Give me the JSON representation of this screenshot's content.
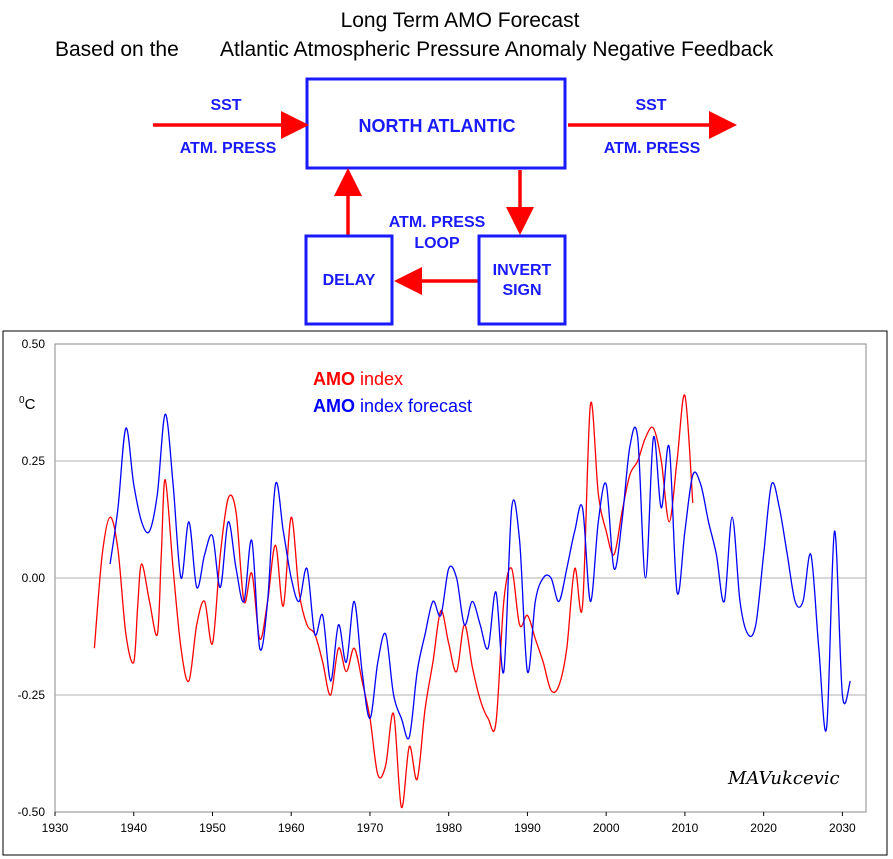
{
  "header": {
    "title_line1": "Long Term AMO Forecast",
    "title_line2_a": "Based on the",
    "title_line2_b": "Atlantic Atmospheric Pressure Anomaly Negative Feedback"
  },
  "diagram": {
    "in_label_top": "SST",
    "in_label_bottom": "ATM. PRESS",
    "main_block": "NORTH  ATLANTIC",
    "out_label_top": "SST",
    "out_label_bottom": "ATM. PRESS",
    "loop_label_1": "ATM. PRESS",
    "loop_label_2": "LOOP",
    "delay_block": "DELAY",
    "invert_block_1": "INVERT",
    "invert_block_2": "SIGN",
    "colors": {
      "text": "#1a1aff",
      "box": "#1a1aff",
      "arrow": "#ff0000"
    }
  },
  "signature": "MAVukcevic",
  "chart_data": {
    "type": "line",
    "unit_label": "°C",
    "xlim": [
      1930,
      2033
    ],
    "ylim": [
      -0.5,
      0.5
    ],
    "x_ticks": [
      "1930",
      "1940",
      "1950",
      "1960",
      "1970",
      "1980",
      "1990",
      "2000",
      "2010",
      "2020",
      "2030"
    ],
    "y_ticks": [
      "0.50",
      "0.25",
      "0.00",
      "-0.25",
      "-0.50"
    ],
    "y_tick_values": [
      0.5,
      0.25,
      0,
      -0.25,
      -0.5
    ],
    "grid": "horizontal",
    "legend": [
      {
        "bold": "AMO",
        "rest": " index",
        "color": "#ff0000"
      },
      {
        "bold": "AMO",
        "rest": " index forecast",
        "color": "#0000ff"
      }
    ],
    "series": [
      {
        "name": "AMO index",
        "color": "#ff0000",
        "x": [
          1935,
          1936,
          1937,
          1938,
          1939,
          1940,
          1940.5,
          1941,
          1942,
          1943,
          1943.5,
          1944,
          1945,
          1946,
          1947,
          1948,
          1949,
          1950,
          1951,
          1952,
          1953,
          1954,
          1955,
          1956,
          1957,
          1958,
          1959,
          1960,
          1961,
          1962,
          1963,
          1964,
          1965,
          1966,
          1967,
          1968,
          1969,
          1970,
          1971,
          1972,
          1973,
          1974,
          1975,
          1976,
          1977,
          1978,
          1979,
          1980,
          1981,
          1982,
          1983,
          1984,
          1985,
          1986,
          1987,
          1988,
          1989,
          1990,
          1991,
          1992,
          1993,
          1994,
          1995,
          1996,
          1997,
          1998,
          1999,
          2000,
          2001,
          2002,
          2003,
          2004,
          2005,
          2006,
          2007,
          2008,
          2009,
          2010,
          2011
        ],
        "y": [
          -0.15,
          0.05,
          0.13,
          0.06,
          -0.12,
          -0.18,
          -0.06,
          0.03,
          -0.05,
          -0.12,
          0.05,
          0.21,
          0.02,
          -0.15,
          -0.22,
          -0.1,
          -0.05,
          -0.14,
          0.05,
          0.17,
          0.14,
          -0.05,
          0.01,
          -0.13,
          -0.05,
          0.07,
          -0.06,
          0.13,
          -0.03,
          -0.1,
          -0.12,
          -0.18,
          -0.25,
          -0.15,
          -0.2,
          -0.15,
          -0.22,
          -0.3,
          -0.42,
          -0.4,
          -0.29,
          -0.49,
          -0.36,
          -0.43,
          -0.28,
          -0.18,
          -0.07,
          -0.14,
          -0.2,
          -0.1,
          -0.19,
          -0.26,
          -0.3,
          -0.31,
          -0.05,
          0.02,
          -0.1,
          -0.08,
          -0.13,
          -0.18,
          -0.24,
          -0.23,
          -0.15,
          0.02,
          -0.06,
          0.37,
          0.18,
          0.1,
          0.05,
          0.14,
          0.22,
          0.25,
          0.3,
          0.32,
          0.25,
          0.12,
          0.25,
          0.39,
          0.16
        ]
      },
      {
        "name": "AMO index forecast",
        "color": "#0000ff",
        "x": [
          1937,
          1938,
          1939,
          1940,
          1941,
          1942,
          1943,
          1944,
          1945,
          1946,
          1947,
          1948,
          1949,
          1950,
          1951,
          1952,
          1953,
          1954,
          1955,
          1956,
          1957,
          1958,
          1959,
          1960,
          1961,
          1962,
          1963,
          1964,
          1965,
          1966,
          1967,
          1968,
          1969,
          1970,
          1971,
          1972,
          1973,
          1974,
          1975,
          1976,
          1977,
          1978,
          1979,
          1980,
          1981,
          1982,
          1983,
          1984,
          1985,
          1986,
          1987,
          1988,
          1989,
          1990,
          1991,
          1992,
          1993,
          1994,
          1995,
          1996,
          1997,
          1998,
          1999,
          2000,
          2001,
          2002,
          2003,
          2004,
          2005,
          2006,
          2007,
          2008,
          2009,
          2010,
          2011,
          2012,
          2013,
          2014,
          2015,
          2016,
          2017,
          2018,
          2019,
          2020,
          2021,
          2022,
          2023,
          2024,
          2025,
          2026,
          2027,
          2028,
          2029,
          2030,
          2031
        ],
        "y": [
          0.03,
          0.15,
          0.32,
          0.2,
          0.12,
          0.1,
          0.18,
          0.35,
          0.2,
          0.0,
          0.12,
          -0.02,
          0.05,
          0.09,
          -0.02,
          0.12,
          0.02,
          -0.05,
          0.08,
          -0.15,
          -0.05,
          0.2,
          0.1,
          0.0,
          -0.05,
          0.02,
          -0.12,
          -0.08,
          -0.22,
          -0.1,
          -0.18,
          -0.05,
          -0.2,
          -0.3,
          -0.18,
          -0.12,
          -0.25,
          -0.3,
          -0.34,
          -0.2,
          -0.12,
          -0.05,
          -0.08,
          0.02,
          0.0,
          -0.1,
          -0.05,
          -0.1,
          -0.15,
          -0.03,
          -0.2,
          0.15,
          0.08,
          -0.2,
          -0.05,
          0.0,
          0.0,
          -0.05,
          0.02,
          0.1,
          0.15,
          -0.05,
          0.12,
          0.2,
          0.02,
          0.12,
          0.28,
          0.3,
          0.0,
          0.3,
          0.15,
          0.28,
          -0.03,
          0.1,
          0.22,
          0.2,
          0.12,
          0.05,
          -0.05,
          0.13,
          -0.05,
          -0.12,
          -0.1,
          0.05,
          0.2,
          0.15,
          0.05,
          -0.05,
          -0.05,
          0.05,
          -0.15,
          -0.32,
          0.1,
          -0.25,
          -0.22
        ]
      }
    ]
  }
}
